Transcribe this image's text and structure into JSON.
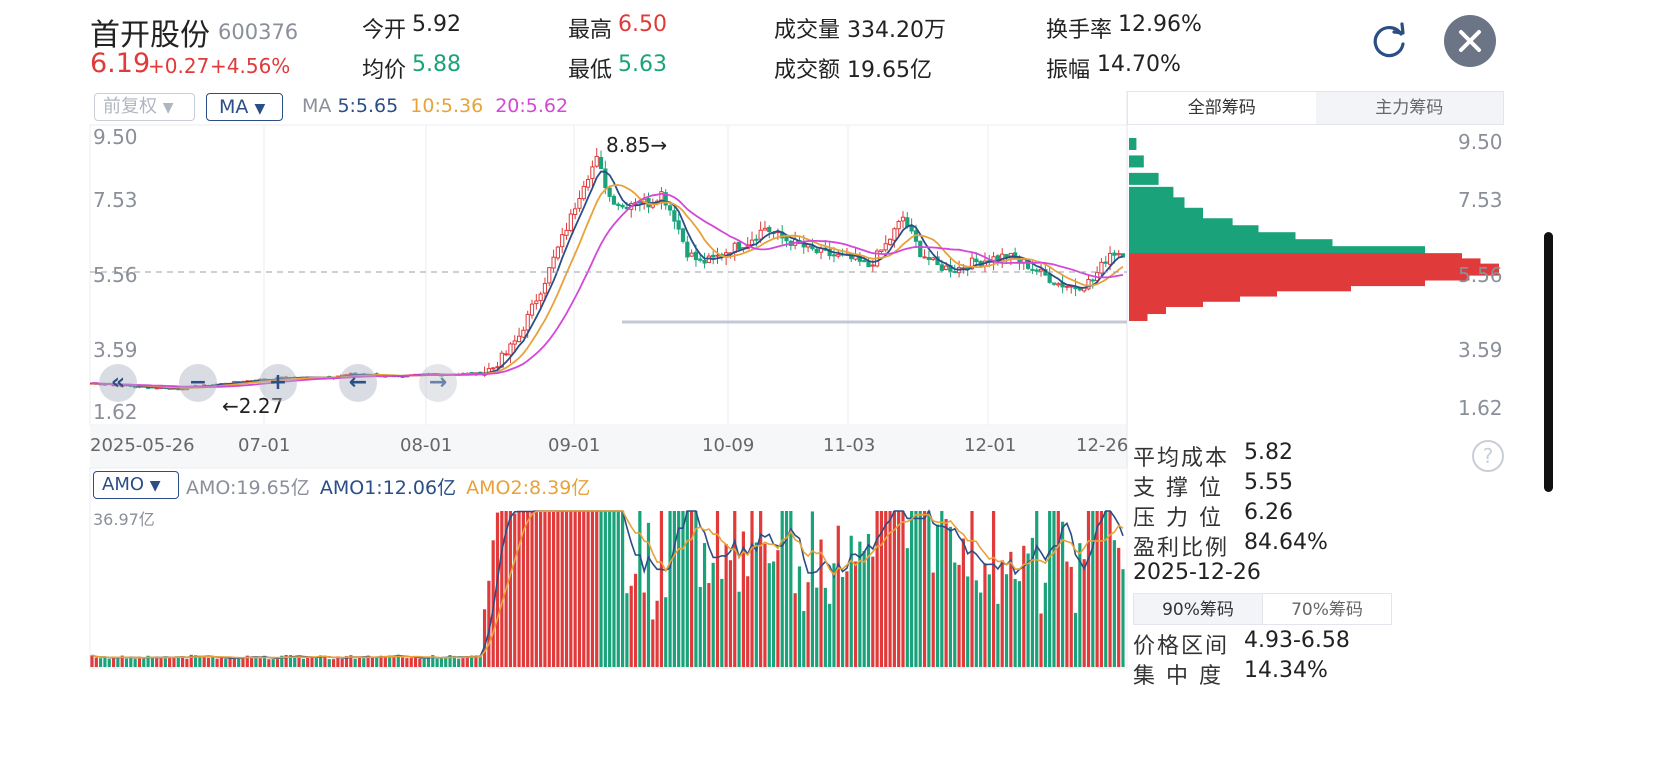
{
  "stock": {
    "name": "首开股份",
    "code": "600376",
    "price": "6.19",
    "change": "+0.27",
    "change_pct": "+4.56%"
  },
  "quote": {
    "open_label": "今开",
    "open_value": "5.92",
    "avg_label": "均价",
    "avg_value": "5.88",
    "high_label": "最高",
    "high_value": "6.50",
    "low_label": "最低",
    "low_value": "5.63",
    "vol_label": "成交量",
    "vol_value": "334.20万",
    "amount_label": "成交额",
    "amount_value": "19.65亿",
    "turnover_label": "换手率",
    "turnover_value": "12.96%",
    "amplitude_label": "振幅",
    "amplitude_value": "14.70%"
  },
  "toolbar": {
    "adjust_label": "前复权",
    "indicator_label": "MA",
    "ma_title": "MA",
    "ma5": "5:5.65",
    "ma10": "10:5.36",
    "ma20": "20:5.62"
  },
  "chip_tabs": {
    "all": "全部筹码",
    "main": "主力筹码"
  },
  "price_axis": [
    "9.50",
    "7.53",
    "5.56",
    "3.59",
    "1.62"
  ],
  "date_axis": [
    "2025-05-26",
    "07-01",
    "08-01",
    "09-01",
    "10-09",
    "11-03",
    "12-01",
    "12-26"
  ],
  "annotations": {
    "high_mark": "8.85→",
    "low_mark": "←2.27"
  },
  "volume": {
    "indicator_label": "AMO",
    "amo": "AMO:19.65亿",
    "amo1": "AMO1:12.06亿",
    "amo2": "AMO2:8.39亿",
    "max_label": "36.97亿"
  },
  "chip_stats": {
    "avg_cost_label": "平均成本",
    "avg_cost": "5.82",
    "support_label": "支 撑 位",
    "support": "5.55",
    "pressure_label": "压 力 位",
    "pressure": "6.26",
    "profit_label": "盈利比例",
    "profit": "84.64%",
    "date": "2025-12-26",
    "tab90": "90%筹码",
    "tab70": "70%筹码",
    "range_label": "价格区间",
    "range": "4.93-6.58",
    "concentration_label": "集 中 度",
    "concentration": "14.34%"
  },
  "colors": {
    "up": "#e03a3a",
    "down": "#1aa37a",
    "ma5": "#2b4e86",
    "ma10": "#e8a23a",
    "ma20": "#d447d8"
  },
  "icons": {
    "refresh": "refresh-icon",
    "close": "close-icon",
    "help": "help-icon"
  },
  "chart_data": {
    "type": "candlestick",
    "x_start": "2025-05-26",
    "x_end": "2025-12-26",
    "price_ylim": [
      1.62,
      9.5
    ],
    "volume_ymax": 36.97,
    "price_path": [
      [
        0,
        2.45
      ],
      [
        10,
        2.35
      ],
      [
        20,
        2.3
      ],
      [
        28,
        2.4
      ],
      [
        35,
        2.5
      ],
      [
        45,
        2.6
      ],
      [
        55,
        2.62
      ],
      [
        60,
        2.7
      ],
      [
        70,
        2.65
      ],
      [
        80,
        2.7
      ],
      [
        90,
        2.72
      ],
      [
        93,
        2.9
      ],
      [
        96,
        3.3
      ],
      [
        99,
        3.8
      ],
      [
        102,
        4.6
      ],
      [
        105,
        5.4
      ],
      [
        108,
        6.3
      ],
      [
        111,
        7.2
      ],
      [
        114,
        8.2
      ],
      [
        117,
        8.85
      ],
      [
        120,
        7.8
      ],
      [
        123,
        7.5
      ],
      [
        126,
        7.7
      ],
      [
        129,
        7.6
      ],
      [
        132,
        7.9
      ],
      [
        135,
        7.2
      ],
      [
        138,
        6.2
      ],
      [
        141,
        5.9
      ],
      [
        144,
        6.0
      ],
      [
        148,
        6.3
      ],
      [
        152,
        6.5
      ],
      [
        156,
        6.9
      ],
      [
        160,
        6.6
      ],
      [
        164,
        6.4
      ],
      [
        168,
        6.2
      ],
      [
        172,
        6.1
      ],
      [
        176,
        6.0
      ],
      [
        180,
        5.8
      ],
      [
        184,
        6.4
      ],
      [
        188,
        7.2
      ],
      [
        192,
        6.2
      ],
      [
        196,
        5.8
      ],
      [
        200,
        5.7
      ],
      [
        204,
        5.9
      ],
      [
        208,
        6.0
      ],
      [
        212,
        6.1
      ],
      [
        216,
        5.9
      ],
      [
        220,
        5.6
      ],
      [
        224,
        5.3
      ],
      [
        228,
        5.2
      ],
      [
        232,
        5.4
      ],
      [
        236,
        6.19
      ]
    ],
    "annotations": {
      "high": 8.85,
      "low": 2.27
    },
    "chip_distribution": {
      "price_levels": [
        9.3,
        8.8,
        8.3,
        7.9,
        7.6,
        7.3,
        7.0,
        6.8,
        6.6,
        6.4,
        6.2,
        6.0,
        5.85,
        5.7,
        5.56,
        5.4,
        5.25,
        5.1,
        4.95,
        4.8,
        4.6,
        4.4
      ],
      "weights": [
        0.02,
        0.04,
        0.08,
        0.12,
        0.15,
        0.2,
        0.28,
        0.35,
        0.45,
        0.55,
        0.8,
        0.9,
        0.95,
        1.0,
        0.92,
        0.8,
        0.6,
        0.4,
        0.3,
        0.2,
        0.1,
        0.05
      ],
      "profit_split_price": 6.19
    }
  }
}
